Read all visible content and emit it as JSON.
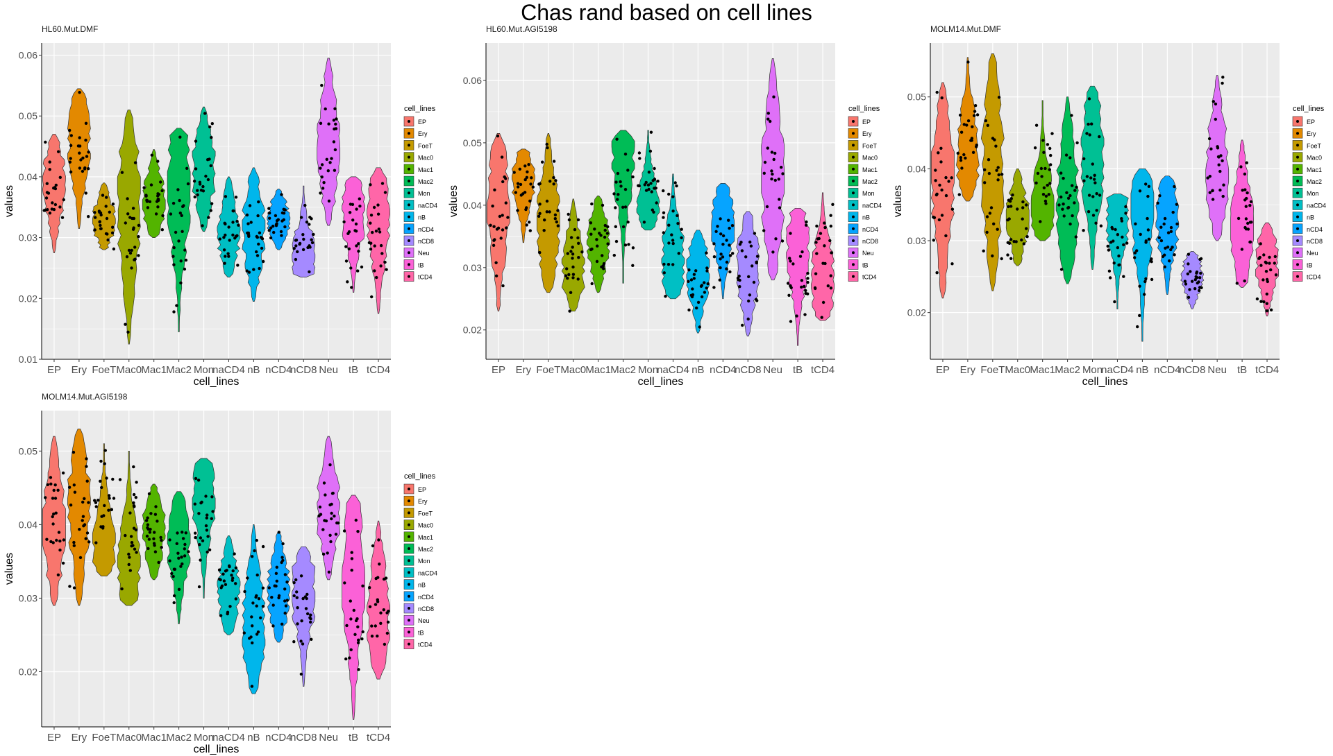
{
  "title": "Chas rand based on cell lines",
  "colors": {
    "EP": "#F8766D",
    "Ery": "#E38900",
    "FoeT": "#C49A00",
    "Mac0": "#99A800",
    "Mac1": "#53B400",
    "Mac2": "#00BC56",
    "Mon": "#00C094",
    "naCD4": "#00BFC4",
    "nB": "#00B6EB",
    "nCD4": "#06A4FF",
    "nCD8": "#A58AFF",
    "Neu": "#DF70F8",
    "tB": "#FB61D7",
    "tCD4": "#FF66A8"
  },
  "chart_data": [
    {
      "type": "violin",
      "title": "HL60.Mut.DMF",
      "xlabel": "cell_lines",
      "ylabel": "values",
      "ylim": [
        0.01,
        0.062
      ],
      "yticks": [
        0.01,
        0.02,
        0.03,
        0.04,
        0.05,
        0.06
      ],
      "ytick_labels": [
        "0.01",
        "0.02",
        "0.03",
        "0.04",
        "0.05",
        "0.06"
      ],
      "legend_title": "cell_lines",
      "legend_position": "right",
      "categories": [
        "EP",
        "Ery",
        "FoeT",
        "Mac0",
        "Mac1",
        "Mac2",
        "Mon",
        "naCD4",
        "nB",
        "nCD4",
        "nCD8",
        "Neu",
        "tB",
        "tCD4"
      ],
      "ranges": [
        [
          0.0275,
          0.047
        ],
        [
          0.0315,
          0.0545
        ],
        [
          0.028,
          0.039
        ],
        [
          0.0125,
          0.051
        ],
        [
          0.03,
          0.0445
        ],
        [
          0.0145,
          0.048
        ],
        [
          0.031,
          0.0515
        ],
        [
          0.0235,
          0.04
        ],
        [
          0.0195,
          0.0415
        ],
        [
          0.028,
          0.038
        ],
        [
          0.0235,
          0.0385
        ],
        [
          0.032,
          0.0595
        ],
        [
          0.021,
          0.04
        ],
        [
          0.0175,
          0.0415
        ]
      ],
      "modes": [
        0.039,
        0.046,
        0.033,
        0.035,
        0.036,
        0.038,
        0.041,
        0.031,
        0.031,
        0.033,
        0.027,
        0.045,
        0.034,
        0.033
      ]
    },
    {
      "type": "violin",
      "title": "HL60.Mut.AGI5198",
      "xlabel": "cell_lines",
      "ylabel": "values",
      "ylim": [
        0.0153,
        0.066
      ],
      "yticks": [
        0.02,
        0.03,
        0.04,
        0.05,
        0.06
      ],
      "ytick_labels": [
        "0.02",
        "0.03",
        "0.04",
        "0.05",
        "0.06"
      ],
      "legend_title": "cell_lines",
      "legend_position": "right",
      "categories": [
        "EP",
        "Ery",
        "FoeT",
        "Mac0",
        "Mac1",
        "Mac2",
        "Mon",
        "naCD4",
        "nB",
        "nCD4",
        "nCD8",
        "Neu",
        "tB",
        "tCD4"
      ],
      "ranges": [
        [
          0.023,
          0.0515
        ],
        [
          0.034,
          0.049
        ],
        [
          0.026,
          0.0515
        ],
        [
          0.023,
          0.041
        ],
        [
          0.026,
          0.0415
        ],
        [
          0.0275,
          0.052
        ],
        [
          0.036,
          0.052
        ],
        [
          0.025,
          0.045
        ],
        [
          0.0195,
          0.036
        ],
        [
          0.025,
          0.0435
        ],
        [
          0.019,
          0.039
        ],
        [
          0.028,
          0.0635
        ],
        [
          0.0175,
          0.0395
        ],
        [
          0.0215,
          0.042
        ]
      ],
      "modes": [
        0.04,
        0.044,
        0.037,
        0.03,
        0.034,
        0.048,
        0.04,
        0.031,
        0.029,
        0.037,
        0.03,
        0.044,
        0.033,
        0.028
      ]
    },
    {
      "type": "violin",
      "title": "MOLM14.Mut.DMF",
      "xlabel": "cell_lines",
      "ylabel": "values",
      "ylim": [
        0.0135,
        0.0575
      ],
      "yticks": [
        0.02,
        0.03,
        0.04,
        0.05
      ],
      "ytick_labels": [
        "0.02",
        "0.03",
        "0.04",
        "0.05"
      ],
      "legend_title": "cell_lines",
      "legend_position": "right",
      "categories": [
        "EP",
        "Ery",
        "FoeT",
        "Mac0",
        "Mac1",
        "Mac2",
        "Mon",
        "naCD4",
        "nB",
        "nCD4",
        "nCD8",
        "Neu",
        "tB",
        "tCD4"
      ],
      "ranges": [
        [
          0.022,
          0.052
        ],
        [
          0.0355,
          0.0555
        ],
        [
          0.023,
          0.056
        ],
        [
          0.0265,
          0.04
        ],
        [
          0.03,
          0.0495
        ],
        [
          0.024,
          0.05
        ],
        [
          0.026,
          0.0515
        ],
        [
          0.0205,
          0.0365
        ],
        [
          0.016,
          0.04
        ],
        [
          0.0225,
          0.039
        ],
        [
          0.0205,
          0.0285
        ],
        [
          0.03,
          0.053
        ],
        [
          0.0235,
          0.044
        ],
        [
          0.0195,
          0.0325
        ]
      ],
      "modes": [
        0.038,
        0.042,
        0.04,
        0.033,
        0.034,
        0.036,
        0.042,
        0.033,
        0.034,
        0.033,
        0.025,
        0.04,
        0.032,
        0.027
      ]
    },
    {
      "type": "violin",
      "title": "MOLM14.Mut.AGI5198",
      "xlabel": "cell_lines",
      "ylabel": "values",
      "ylim": [
        0.0125,
        0.0555
      ],
      "yticks": [
        0.02,
        0.03,
        0.04,
        0.05
      ],
      "ytick_labels": [
        "0.02",
        "0.03",
        "0.04",
        "0.05"
      ],
      "legend_title": "cell_lines",
      "legend_position": "right",
      "categories": [
        "EP",
        "Ery",
        "FoeT",
        "Mac0",
        "Mac1",
        "Mac2",
        "Mon",
        "naCD4",
        "nB",
        "nCD4",
        "nCD8",
        "Neu",
        "tB",
        "tCD4"
      ],
      "ranges": [
        [
          0.029,
          0.052
        ],
        [
          0.029,
          0.053
        ],
        [
          0.033,
          0.051
        ],
        [
          0.029,
          0.05
        ],
        [
          0.0325,
          0.0455
        ],
        [
          0.0265,
          0.0445
        ],
        [
          0.03,
          0.049
        ],
        [
          0.025,
          0.0385
        ],
        [
          0.017,
          0.04
        ],
        [
          0.024,
          0.039
        ],
        [
          0.018,
          0.037
        ],
        [
          0.0325,
          0.052
        ],
        [
          0.0135,
          0.044
        ],
        [
          0.019,
          0.0405
        ]
      ],
      "modes": [
        0.04,
        0.042,
        0.037,
        0.034,
        0.039,
        0.038,
        0.044,
        0.031,
        0.026,
        0.031,
        0.031,
        0.042,
        0.033,
        0.028
      ]
    }
  ]
}
